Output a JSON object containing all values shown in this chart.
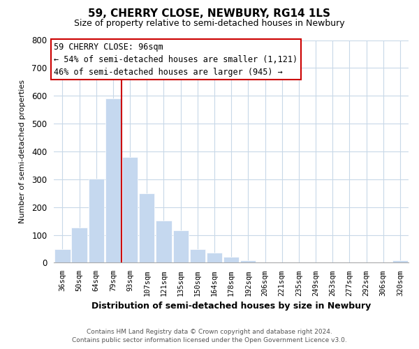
{
  "title": "59, CHERRY CLOSE, NEWBURY, RG14 1LS",
  "subtitle": "Size of property relative to semi-detached houses in Newbury",
  "xlabel": "Distribution of semi-detached houses by size in Newbury",
  "ylabel": "Number of semi-detached properties",
  "bar_labels": [
    "36sqm",
    "50sqm",
    "64sqm",
    "79sqm",
    "93sqm",
    "107sqm",
    "121sqm",
    "135sqm",
    "150sqm",
    "164sqm",
    "178sqm",
    "192sqm",
    "206sqm",
    "221sqm",
    "235sqm",
    "249sqm",
    "263sqm",
    "277sqm",
    "292sqm",
    "306sqm",
    "320sqm"
  ],
  "bar_values": [
    50,
    127,
    303,
    591,
    380,
    250,
    152,
    116,
    50,
    35,
    20,
    8,
    1,
    2,
    1,
    0,
    0,
    0,
    0,
    0,
    8
  ],
  "bar_color": "#c5d8ef",
  "redline_index": 3,
  "ylim": [
    0,
    800
  ],
  "yticks": [
    0,
    100,
    200,
    300,
    400,
    500,
    600,
    700,
    800
  ],
  "annotation_title": "59 CHERRY CLOSE: 96sqm",
  "annotation_line1": "← 54% of semi-detached houses are smaller (1,121)",
  "annotation_line2": "46% of semi-detached houses are larger (945) →",
  "footnote1": "Contains HM Land Registry data © Crown copyright and database right 2024.",
  "footnote2": "Contains public sector information licensed under the Open Government Licence v3.0.",
  "bg_color": "#ffffff",
  "grid_color": "#c8d8e8",
  "annotation_box_color": "#ffffff",
  "annotation_box_edge": "#cc0000",
  "redline_color": "#cc0000",
  "title_fontsize": 11,
  "subtitle_fontsize": 9,
  "ylabel_fontsize": 8,
  "xlabel_fontsize": 9
}
